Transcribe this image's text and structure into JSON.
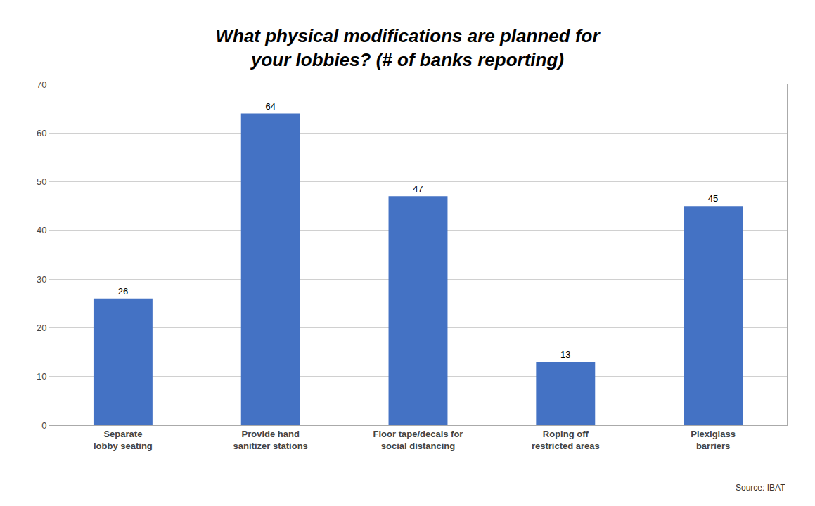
{
  "chart_data": {
    "type": "bar",
    "title": "What physical modifications are planned for\nyour lobbies? (# of banks reporting)",
    "categories": [
      "Separate\nlobby seating",
      "Provide hand\nsanitizer stations",
      "Floor tape/decals for\nsocial distancing",
      "Roping off\nrestricted areas",
      "Plexiglass\nbarriers"
    ],
    "values": [
      26,
      64,
      47,
      13,
      45
    ],
    "color": "#4472C4",
    "ylim": [
      0,
      70
    ],
    "yticks": [
      0,
      10,
      20,
      30,
      40,
      50,
      60,
      70
    ],
    "grid": true,
    "data_labels": true,
    "annotations": [
      "Source: IBAT"
    ]
  }
}
